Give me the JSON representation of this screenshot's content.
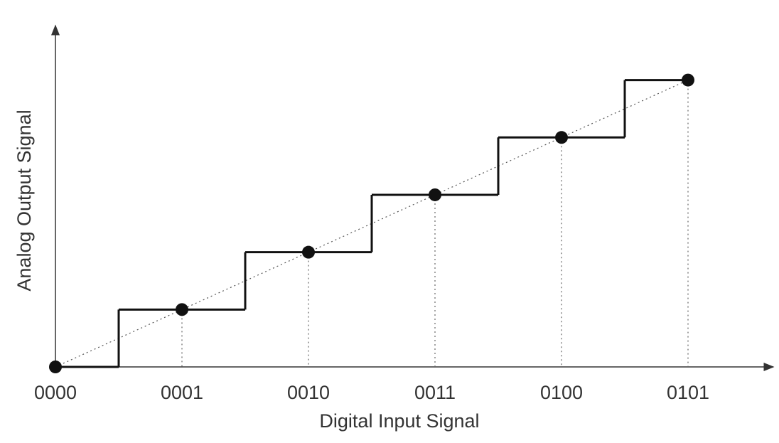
{
  "chart_data": {
    "type": "step",
    "x_label": "Digital Input Signal",
    "y_label": "Analog Output Signal",
    "categories": [
      "0000",
      "0001",
      "0010",
      "0011",
      "0100",
      "0101"
    ],
    "values": [
      0,
      1,
      2,
      3,
      4,
      5
    ],
    "ylim": [
      0,
      5.9
    ],
    "color": "#111111"
  }
}
